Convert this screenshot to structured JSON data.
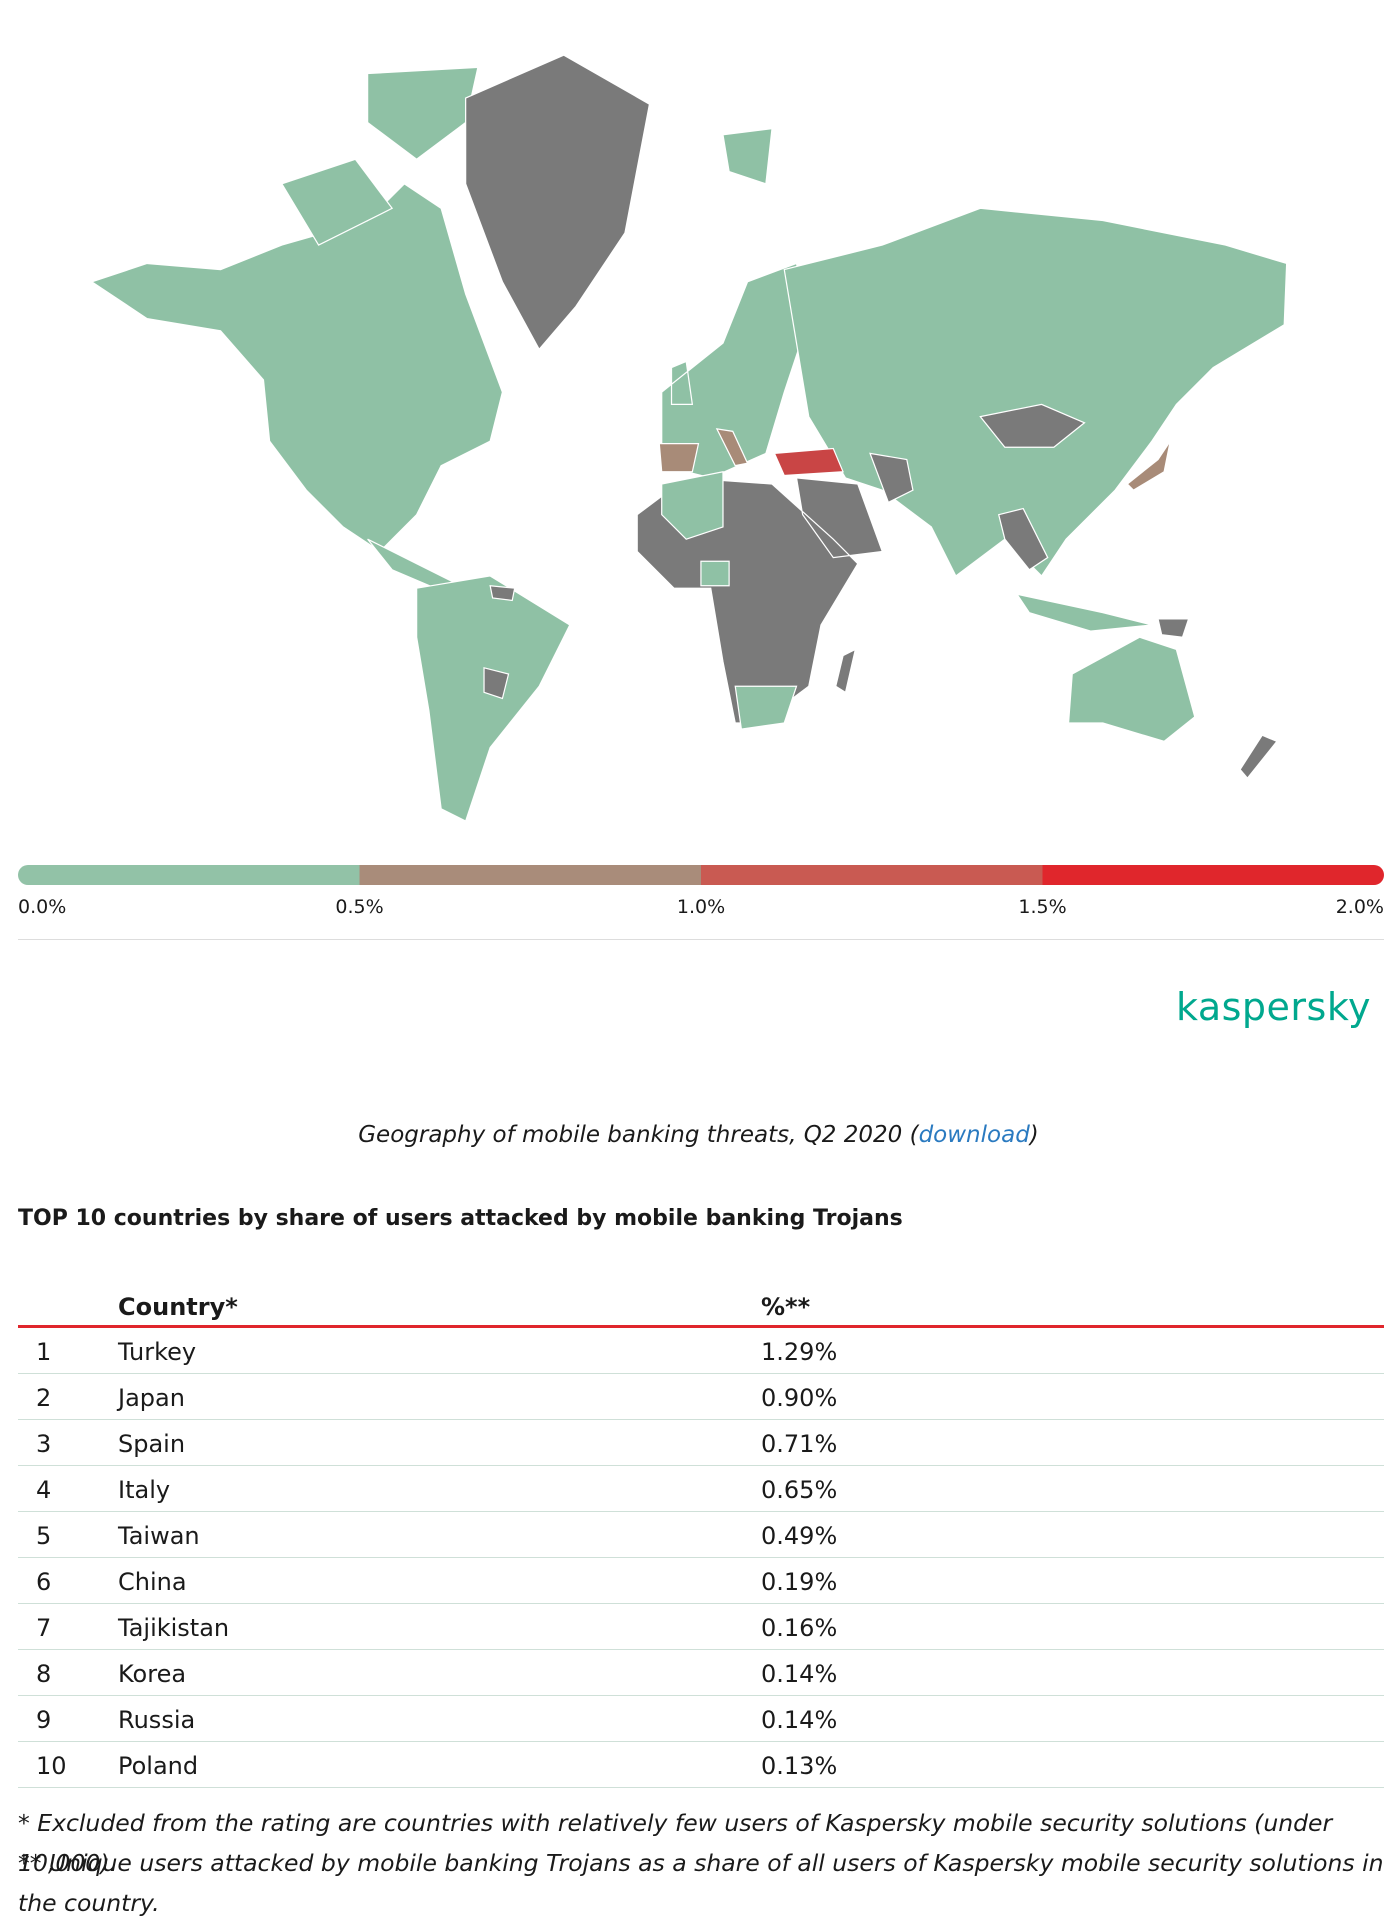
{
  "map": {
    "legend": {
      "colors": [
        "#92c2a7",
        "#a98c7a",
        "#c95a52",
        "#e0262c"
      ],
      "labels": [
        "0.0%",
        "0.5%",
        "1.0%",
        "1.5%",
        "2.0%"
      ]
    }
  },
  "logo": "kaspersky",
  "caption": {
    "before": "Geography of mobile banking threats, Q2 2020 (",
    "link": "download",
    "after": ")"
  },
  "table": {
    "title": "TOP 10 countries by share of users attacked by mobile banking Trojans",
    "header": [
      "Country*",
      "%**"
    ],
    "rows": [
      [
        "1",
        "Turkey",
        "1.29%"
      ],
      [
        "2",
        "Japan",
        "0.90%"
      ],
      [
        "3",
        "Spain",
        "0.71%"
      ],
      [
        "4",
        "Italy",
        "0.65%"
      ],
      [
        "5",
        "Taiwan",
        "0.49%"
      ],
      [
        "6",
        "China",
        "0.19%"
      ],
      [
        "7",
        "Tajikistan",
        "0.16%"
      ],
      [
        "8",
        "Korea",
        "0.14%"
      ],
      [
        "9",
        "Russia",
        "0.14%"
      ],
      [
        "10",
        "Poland",
        "0.13%"
      ]
    ]
  },
  "footnotes": [
    "* Excluded from the rating are countries with relatively few users of Kaspersky mobile security solutions (under 10,000).",
    "** Unique users attacked by mobile banking Trojans as a share of all users of Kaspersky mobile security solutions in the country."
  ]
}
